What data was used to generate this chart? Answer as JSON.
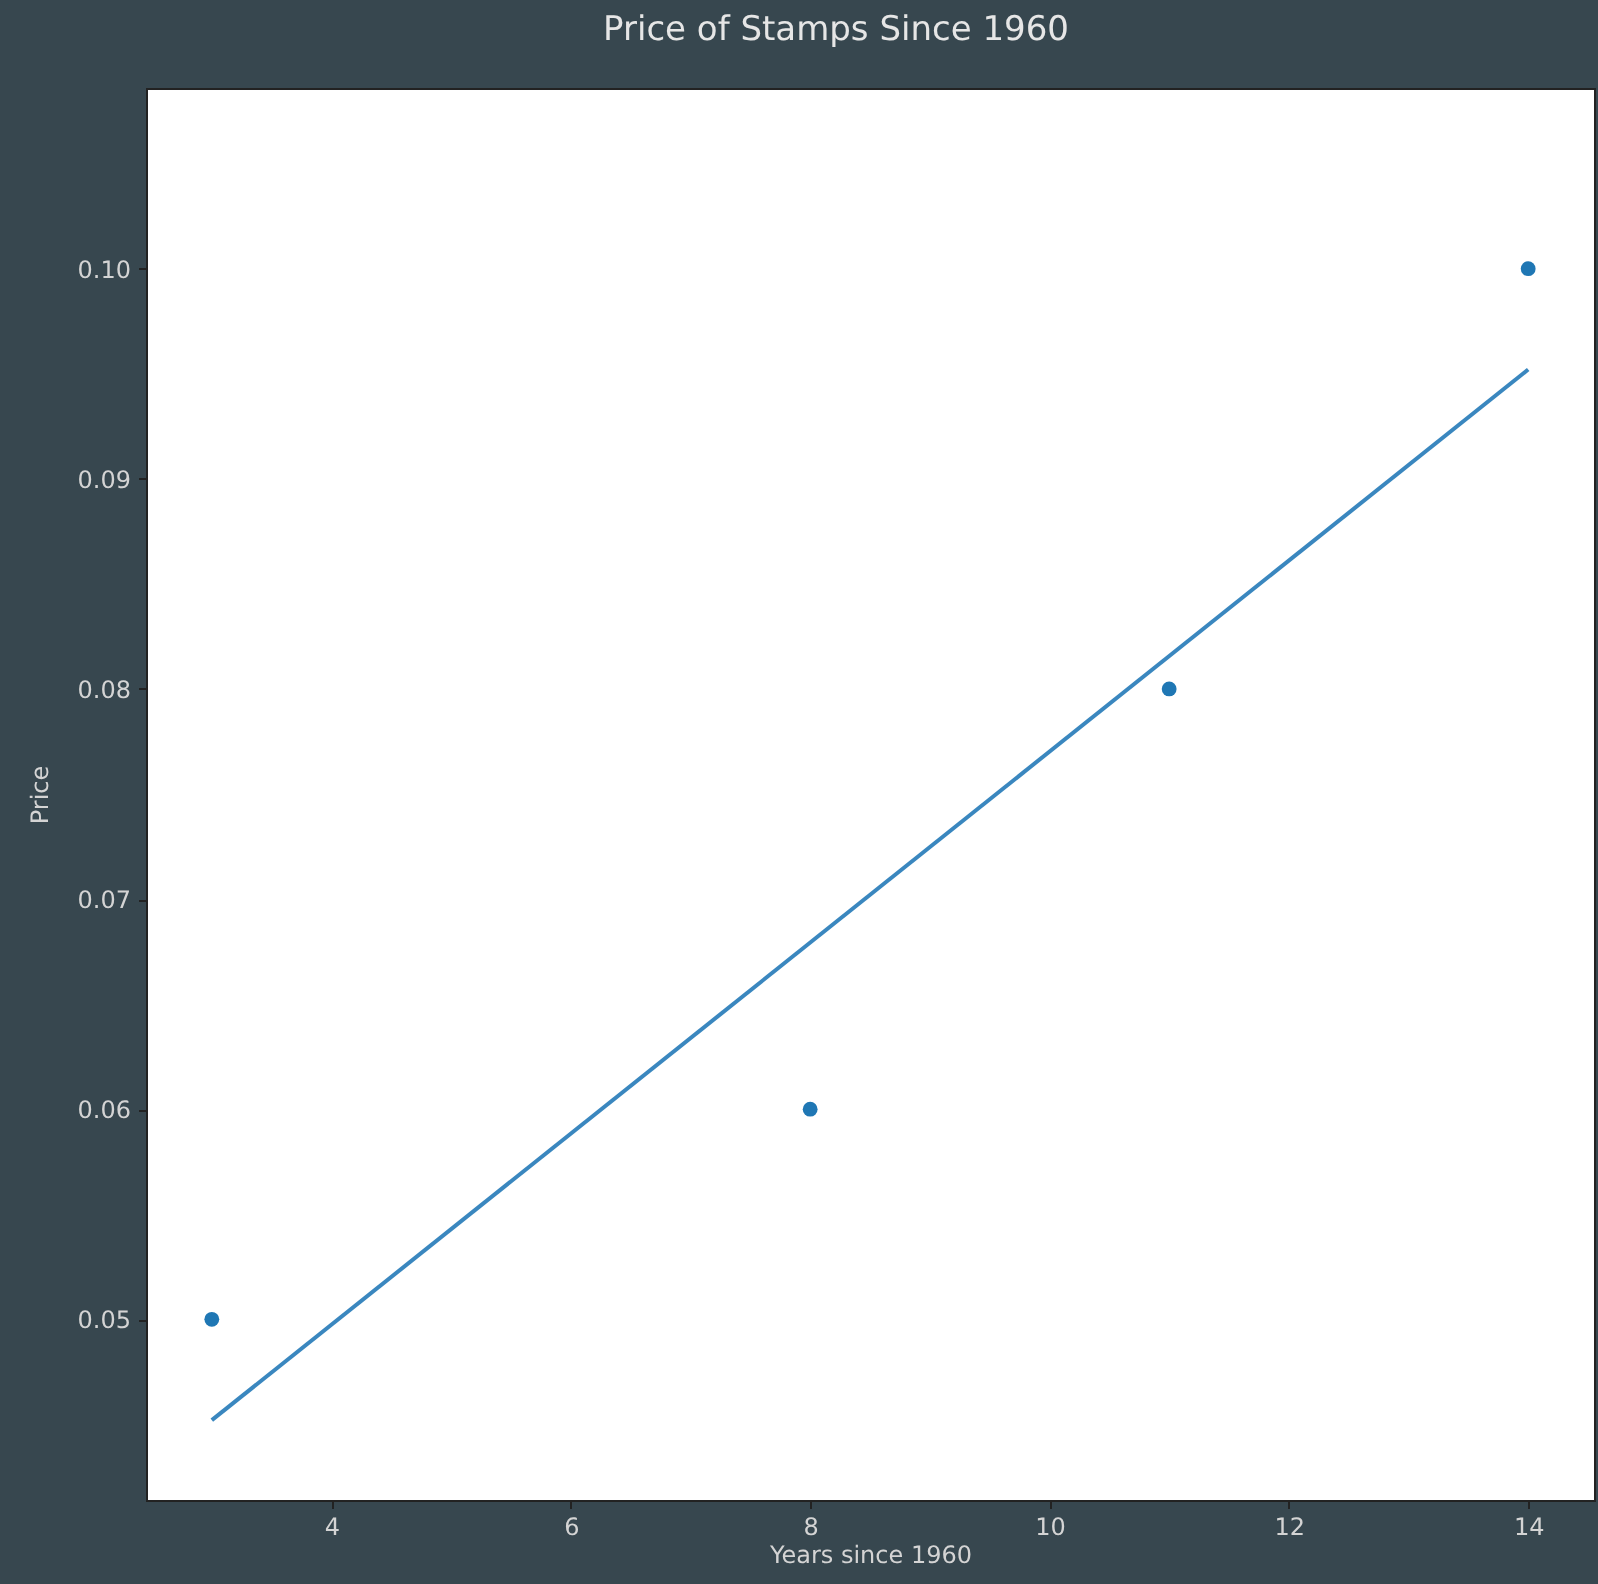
{
  "chart_data": {
    "type": "scatter",
    "title": "Price of Stamps Since 1960",
    "xlabel": "Years since 1960",
    "ylabel": "Price",
    "xlim": [
      2.45,
      14.55
    ],
    "ylim": [
      0.0414,
      0.1086
    ],
    "xticks": [
      4,
      6,
      8,
      10,
      12,
      14
    ],
    "yticks": [
      0.05,
      0.06,
      0.07,
      0.08,
      0.09,
      {
        "value": 0.1,
        "label": "0.10"
      }
    ],
    "series": [
      {
        "marker": "circle",
        "color": "#1f77b4",
        "x": [
          3,
          8,
          11,
          14
        ],
        "values": [
          0.05,
          0.06,
          0.08,
          0.1
        ]
      },
      {
        "type": "line",
        "color": "#3a87bf",
        "x": [
          3,
          14
        ],
        "values": [
          0.0452,
          0.0952
        ]
      }
    ]
  }
}
